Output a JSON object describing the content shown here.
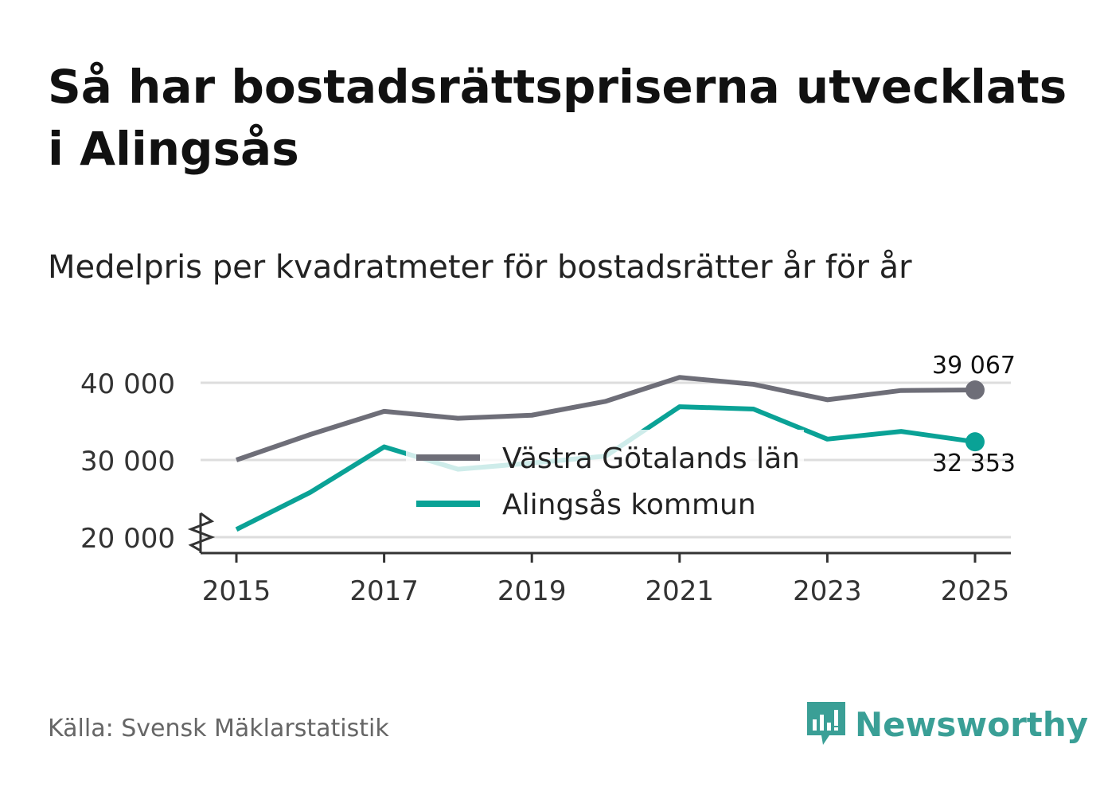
{
  "title": "Så har bostadsrättspriserna utvecklats i Alingsås",
  "subtitle": "Medelpris per kvadratmeter för bostadsrätter år för år",
  "source": "Källa: Svensk Mäklarstatistik",
  "brand": {
    "name": "Newsworthy",
    "color": "#3a9f96",
    "icon": "newsworthy-logo-icon"
  },
  "chart_data": {
    "type": "line",
    "title": "Medelpris per kvadratmeter för bostadsrätter år för år",
    "x": [
      2015,
      2016,
      2017,
      2018,
      2019,
      2020,
      2021,
      2022,
      2023,
      2024,
      2025
    ],
    "xticks": [
      "2015",
      "2017",
      "2019",
      "2021",
      "2023",
      "2025"
    ],
    "yticks": [
      "20 000",
      "30 000",
      "40 000"
    ],
    "ylim": [
      18000,
      41500
    ],
    "y_axis_break": true,
    "legend_position": "center",
    "series": [
      {
        "name": "Västra Götalands län",
        "color": "#6e6e78",
        "values": [
          30000,
          33300,
          36300,
          35400,
          35800,
          37600,
          40700,
          39800,
          37800,
          39000,
          39067
        ],
        "end_label": "39 067"
      },
      {
        "name": "Alingsås kommun",
        "color": "#0aa296",
        "values": [
          21000,
          25800,
          31700,
          28800,
          29600,
          30500,
          36900,
          36600,
          32700,
          33700,
          32353
        ],
        "end_label": "32 353"
      }
    ]
  }
}
